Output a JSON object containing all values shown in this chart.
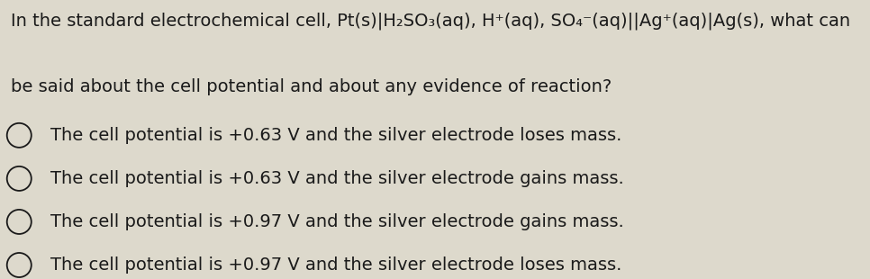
{
  "background_color": "#ddd9cc",
  "text_color": "#1a1a1a",
  "question_line1": "In the standard electrochemical cell, Pt(s)|H₂SO₃(aq), H⁺(aq), SO₄⁻(aq)||Ag⁺(aq)|Ag(s), what can",
  "question_line2": "be said about the cell potential and about any evidence of reaction?",
  "options": [
    "The cell potential is +0.63 V and the silver electrode loses mass.",
    "The cell potential is +0.63 V and the silver electrode gains mass.",
    "The cell potential is +0.97 V and the silver electrode gains mass.",
    "The cell potential is +0.97 V and the silver electrode loses mass."
  ],
  "question_fontsize": 14.0,
  "option_fontsize": 14.0,
  "fig_width": 9.66,
  "fig_height": 3.1,
  "dpi": 100
}
